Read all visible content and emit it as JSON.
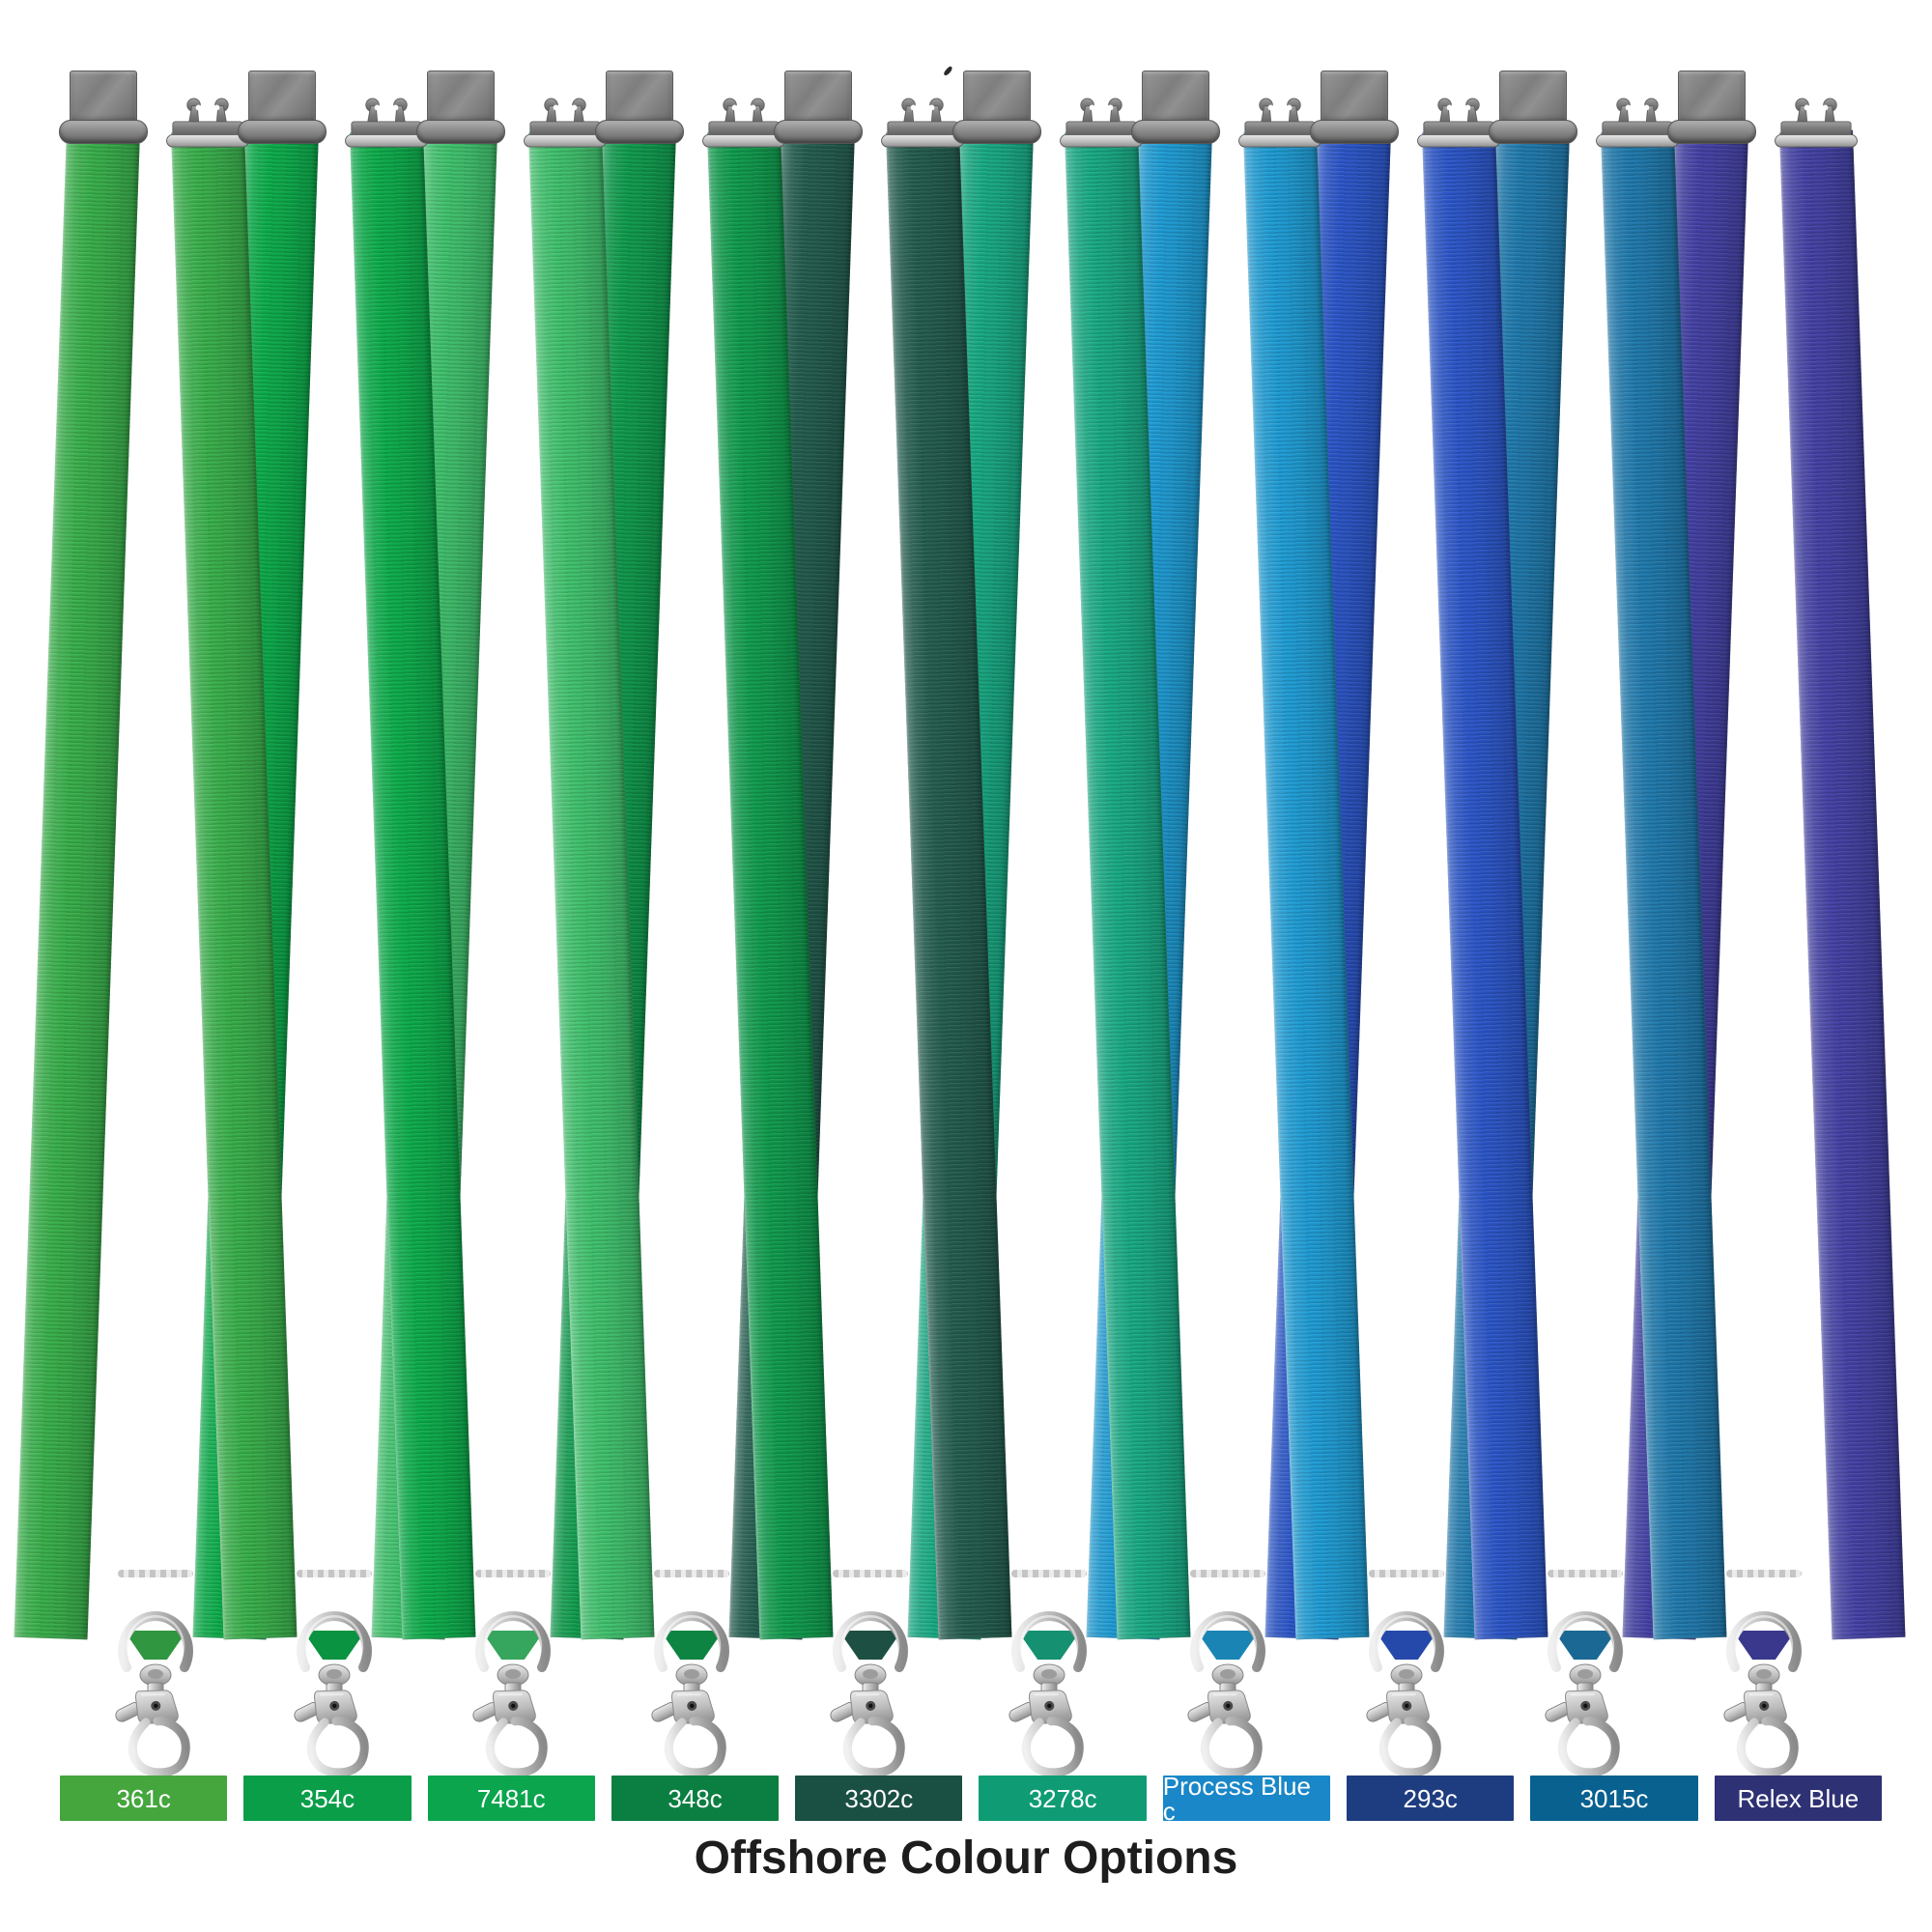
{
  "title": "Offshore Colour Options",
  "colors": {
    "background": "#ffffff",
    "title_text": "#1d1d1d",
    "swatch_text": "#ffffff",
    "metal_dark_gray": "#7e7e7e",
    "metal_silver": "#c4c4c4"
  },
  "lanyards": [
    {
      "label": "361c",
      "swatch": "#44a63d",
      "strap": "#38ae4a"
    },
    {
      "label": "354c",
      "swatch": "#0a9e49",
      "strap": "#0cab4a"
    },
    {
      "label": "7481c",
      "swatch": "#0aa54d",
      "strap": "#3fc06c"
    },
    {
      "label": "348c",
      "swatch": "#0b7f41",
      "strap": "#0f9a4c"
    },
    {
      "label": "3302c",
      "swatch": "#1a4f44",
      "strap": "#235c4e"
    },
    {
      "label": "3278c",
      "swatch": "#0f9c75",
      "strap": "#18a983"
    },
    {
      "label": "Process Blue c",
      "swatch": "#1987c8",
      "strap": "#1e9bd3"
    },
    {
      "label": "293c",
      "swatch": "#1e3d80",
      "strap": "#2b55c7"
    },
    {
      "label": "3015c",
      "swatch": "#08618f",
      "strap": "#1f79ac"
    },
    {
      "label": "Relex Blue",
      "swatch": "#2e3173",
      "strap": "#4341a3"
    }
  ]
}
